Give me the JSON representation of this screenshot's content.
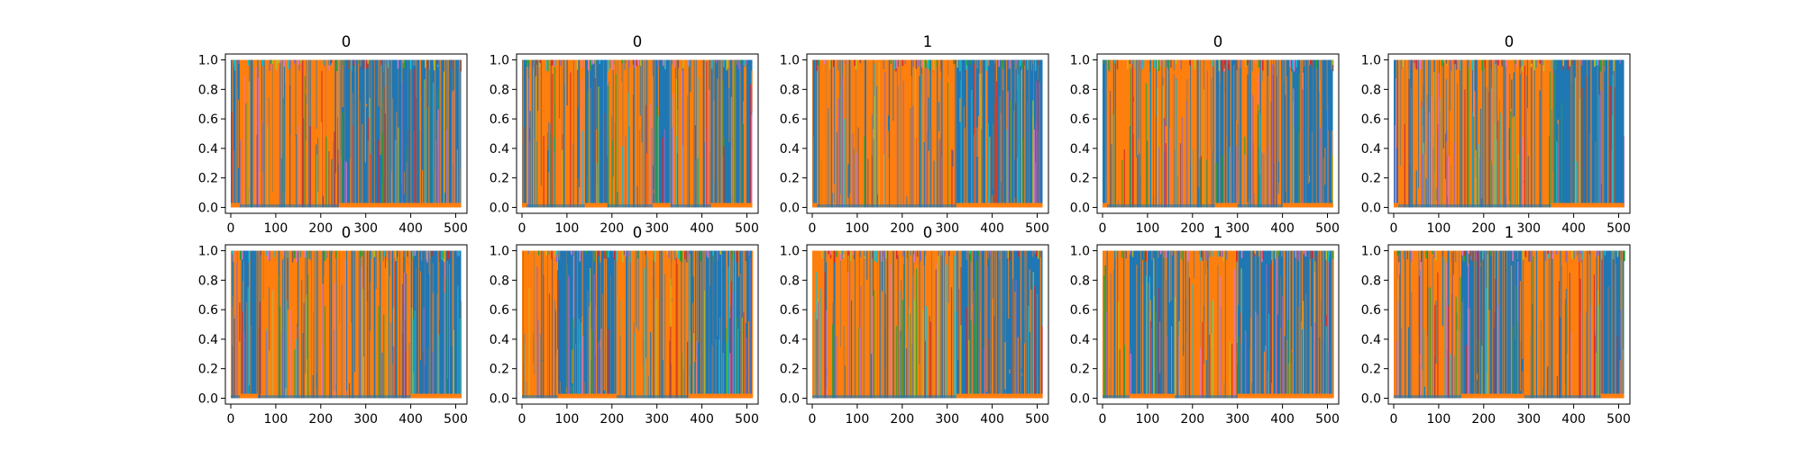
{
  "chart_data": {
    "type": "line",
    "layout": {
      "rows": 2,
      "cols": 5
    },
    "xlim": [
      -12,
      525
    ],
    "ylim": [
      -0.04,
      1.04
    ],
    "x_ticks": [
      "0",
      "100",
      "200",
      "300",
      "400",
      "500"
    ],
    "y_ticks": [
      "0.0",
      "0.2",
      "0.4",
      "0.6",
      "0.8",
      "1.0"
    ],
    "series_colors": [
      "#1f77b4",
      "#ff7f0e",
      "#17becf",
      "#bcbd22",
      "#2ca02c",
      "#d62728",
      "#9467bd",
      "#e377c2",
      "#8c564b",
      "#7f7f7f"
    ],
    "dominant_colors": {
      "blue": "#1f77b4",
      "orange": "#ff7f0e"
    },
    "panels": [
      {
        "title": "0",
        "dominant_segments": [
          [
            0,
            20,
            "blue"
          ],
          [
            20,
            240,
            "orange"
          ],
          [
            240,
            512,
            "blue"
          ]
        ]
      },
      {
        "title": "0",
        "dominant_segments": [
          [
            0,
            10,
            "blue"
          ],
          [
            10,
            140,
            "orange"
          ],
          [
            140,
            190,
            "blue"
          ],
          [
            190,
            290,
            "orange"
          ],
          [
            290,
            330,
            "blue"
          ],
          [
            330,
            420,
            "orange"
          ],
          [
            420,
            512,
            "blue"
          ]
        ]
      },
      {
        "title": "1",
        "dominant_segments": [
          [
            0,
            10,
            "blue"
          ],
          [
            10,
            320,
            "orange"
          ],
          [
            320,
            512,
            "blue"
          ]
        ]
      },
      {
        "title": "0",
        "dominant_segments": [
          [
            0,
            10,
            "blue"
          ],
          [
            10,
            250,
            "orange"
          ],
          [
            250,
            300,
            "blue"
          ],
          [
            300,
            400,
            "orange"
          ],
          [
            400,
            512,
            "blue"
          ]
        ]
      },
      {
        "title": "0",
        "dominant_segments": [
          [
            0,
            10,
            "blue"
          ],
          [
            10,
            350,
            "orange"
          ],
          [
            350,
            512,
            "blue"
          ]
        ]
      },
      {
        "title": "0",
        "dominant_segments": [
          [
            0,
            20,
            "orange"
          ],
          [
            20,
            60,
            "blue"
          ],
          [
            60,
            400,
            "orange"
          ],
          [
            400,
            512,
            "blue"
          ]
        ]
      },
      {
        "title": "0",
        "dominant_segments": [
          [
            0,
            80,
            "orange"
          ],
          [
            80,
            210,
            "blue"
          ],
          [
            210,
            370,
            "orange"
          ],
          [
            370,
            512,
            "blue"
          ]
        ]
      },
      {
        "title": "0",
        "dominant_segments": [
          [
            0,
            320,
            "orange"
          ],
          [
            320,
            512,
            "blue"
          ]
        ]
      },
      {
        "title": "1",
        "dominant_segments": [
          [
            0,
            60,
            "orange"
          ],
          [
            60,
            160,
            "blue"
          ],
          [
            160,
            300,
            "orange"
          ],
          [
            300,
            512,
            "blue"
          ]
        ]
      },
      {
        "title": "1",
        "dominant_segments": [
          [
            0,
            150,
            "orange"
          ],
          [
            150,
            290,
            "blue"
          ],
          [
            290,
            460,
            "orange"
          ],
          [
            460,
            512,
            "blue"
          ]
        ]
      }
    ]
  }
}
